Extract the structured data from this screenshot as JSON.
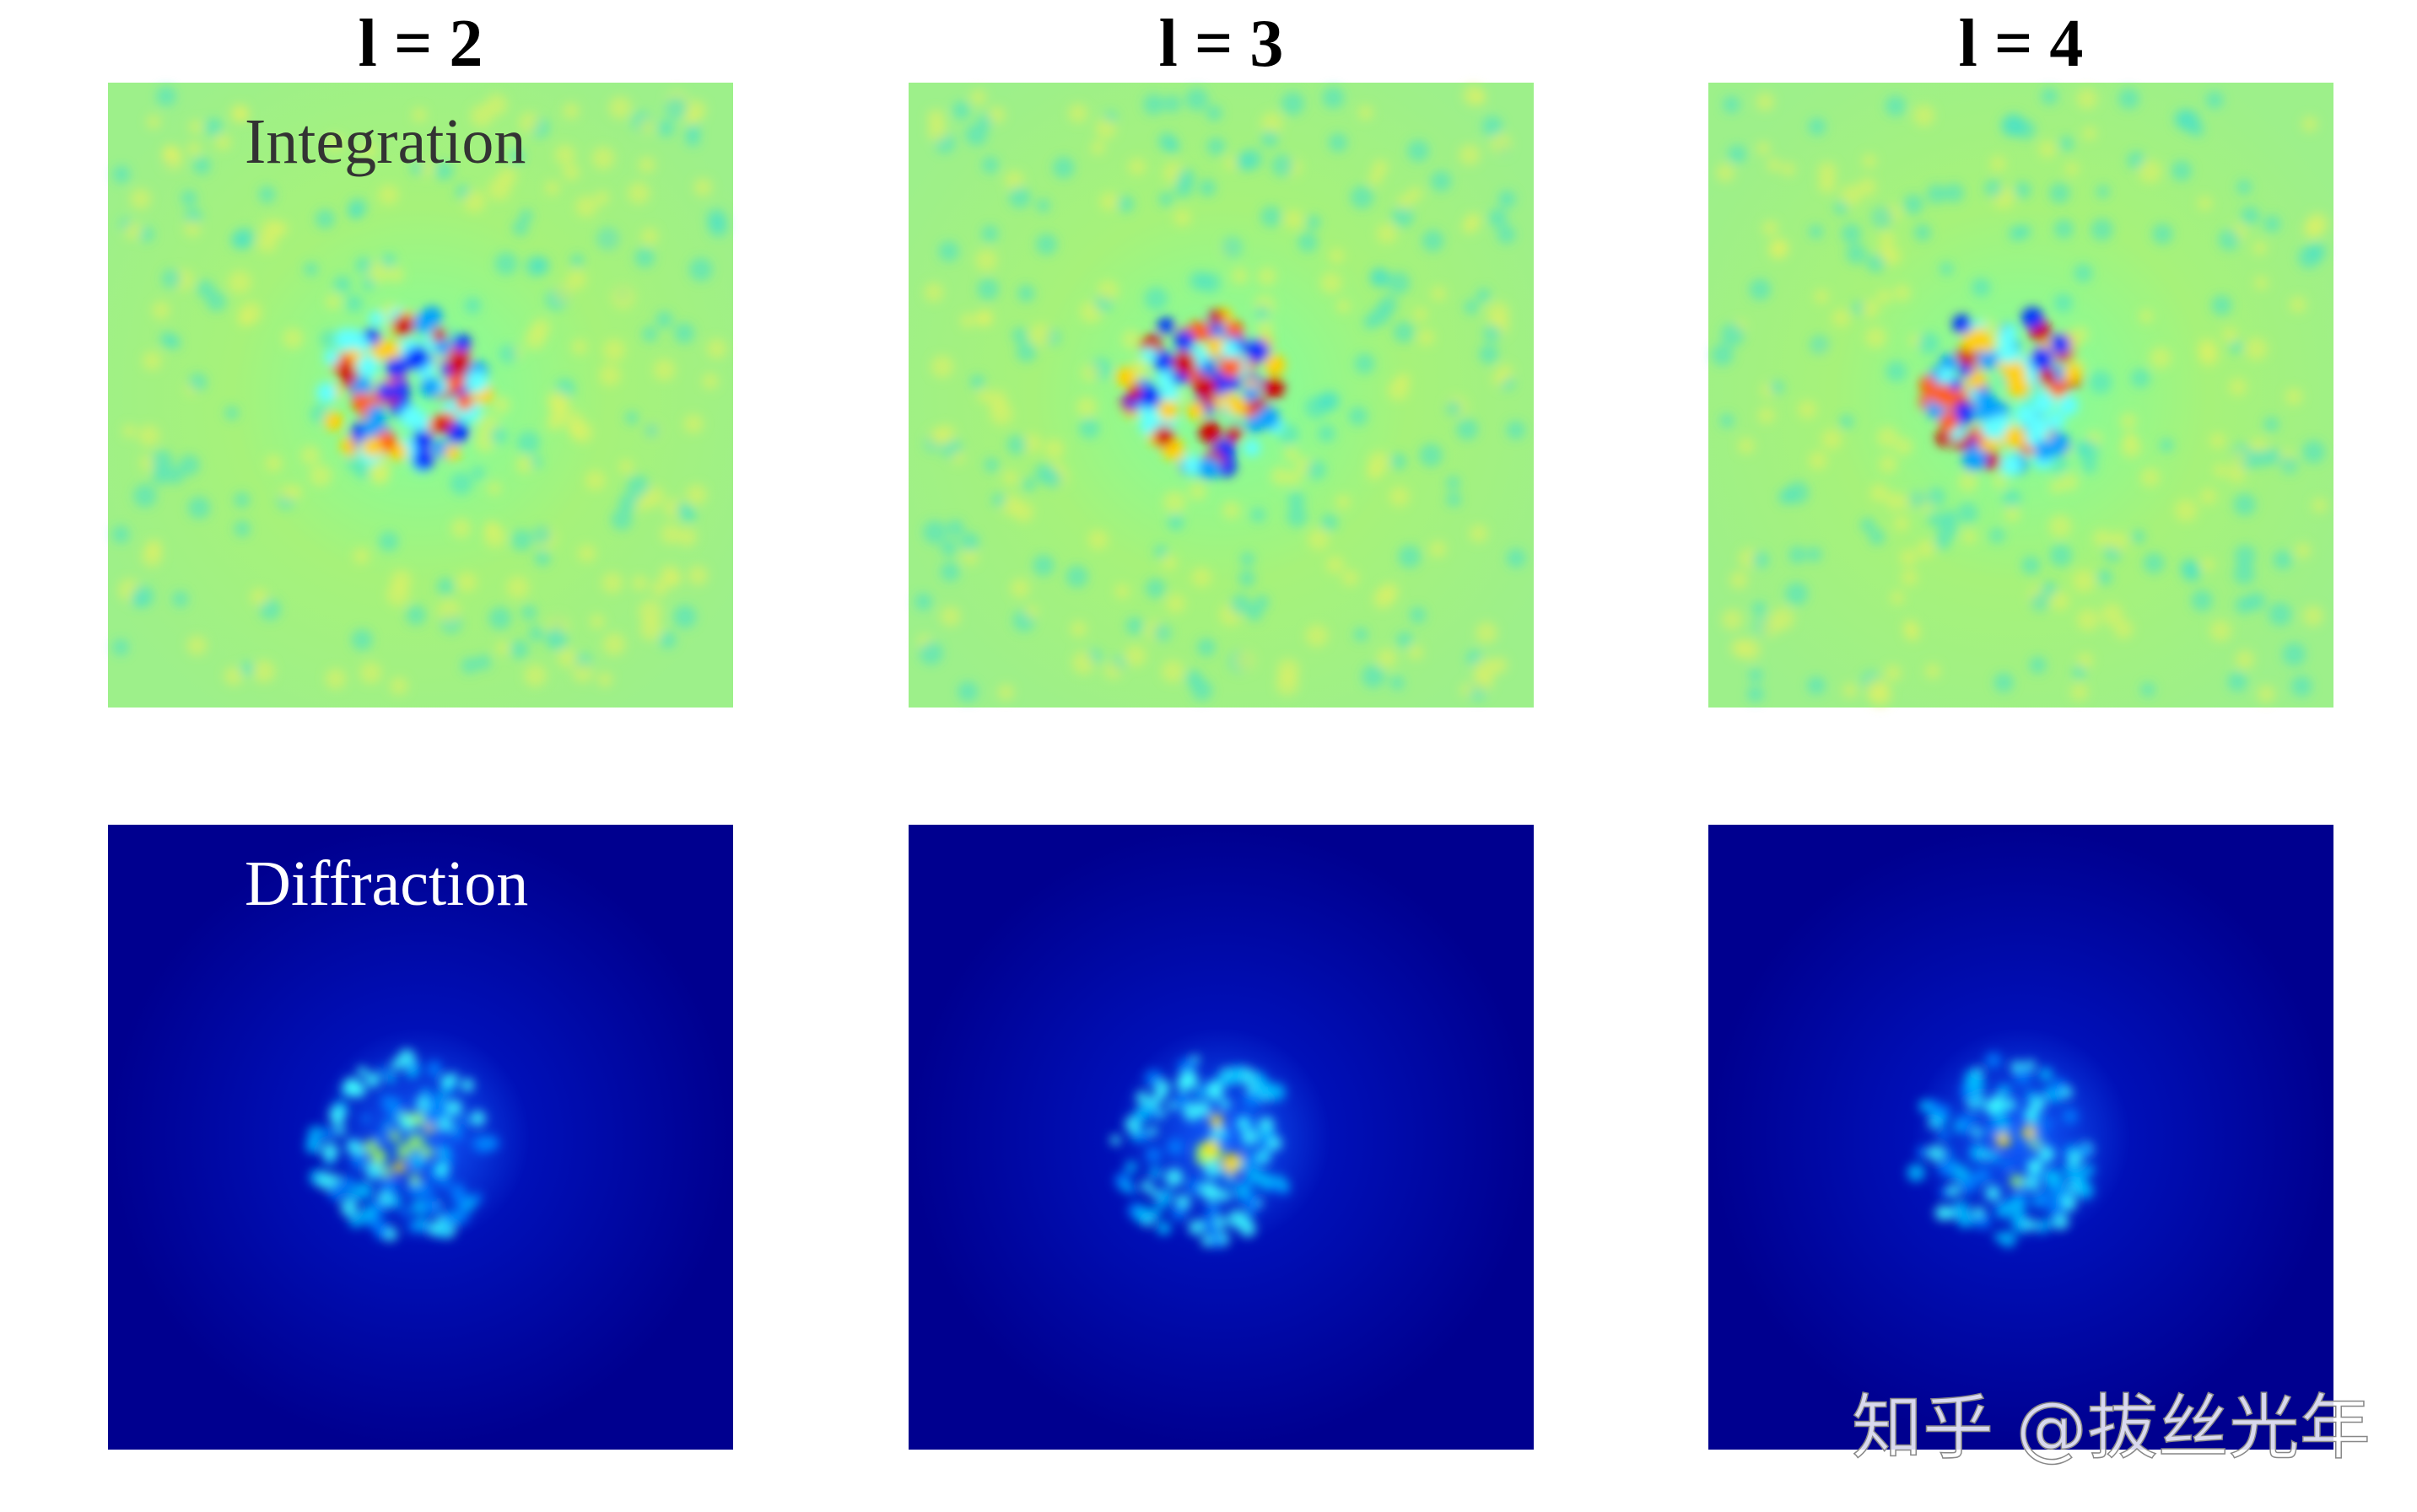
{
  "columns": [
    {
      "title": "l = 2"
    },
    {
      "title": "l = 3"
    },
    {
      "title": "l = 4"
    }
  ],
  "rows": [
    {
      "label": "Integration"
    },
    {
      "label": "Diffraction"
    }
  ],
  "watermark": "知乎 @拔丝光年"
}
